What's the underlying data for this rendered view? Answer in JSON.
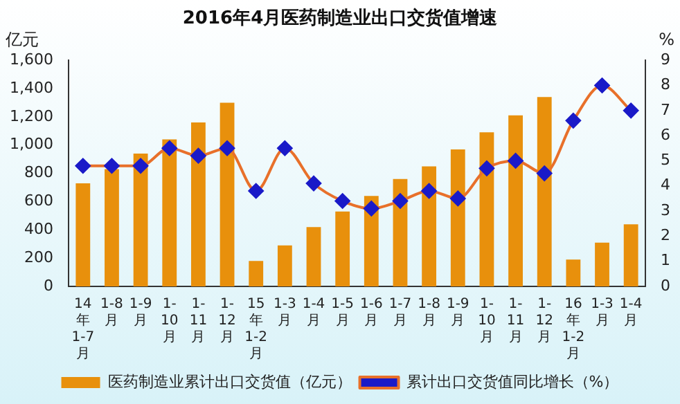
{
  "chart_data": {
    "type": "bar",
    "title": "2016年4月医药制造业出口交货值增速",
    "ylabel": "亿元",
    "y2label": "%",
    "categories": [
      "14年1-7月",
      "1-8月",
      "1-9月",
      "1-10月",
      "1-11月",
      "1-12月",
      "15年1-2月",
      "1-3月",
      "1-4月",
      "1-5月",
      "1-6月",
      "1-7月",
      "1-8月",
      "1-9月",
      "1-10月",
      "1-11月",
      "1-12月",
      "16年1-2月",
      "1-3月",
      "1-4月"
    ],
    "series": [
      {
        "name": "医药制造业累计出口交货值（亿元）",
        "color": "#e8900c",
        "values": [
          730,
          830,
          940,
          1040,
          1160,
          1300,
          180,
          290,
          420,
          530,
          640,
          760,
          850,
          970,
          1090,
          1210,
          1340,
          190,
          310,
          440
        ]
      },
      {
        "name": "累计出口交货值同比增长（%）",
        "type": "line",
        "axis": "y2",
        "color": "#e8702a",
        "marker": "diamond",
        "values": [
          4.8,
          4.8,
          4.8,
          5.5,
          5.2,
          5.5,
          3.8,
          5.5,
          4.1,
          3.4,
          3.1,
          3.4,
          3.8,
          3.5,
          4.7,
          5.0,
          4.5,
          6.6,
          8.0,
          7.0
        ]
      }
    ],
    "ylim": [
      0,
      1600
    ],
    "yticks": [
      0,
      {
        "value": 200,
        "label": "200"
      },
      {
        "value": 400,
        "label": "400"
      },
      {
        "value": 600,
        "label": "600"
      },
      {
        "value": 800,
        "label": "800"
      },
      {
        "value": 1000,
        "label": "1,000"
      },
      {
        "value": 1200,
        "label": "1,200"
      },
      {
        "value": 1400,
        "label": "1,400"
      },
      {
        "value": 1600,
        "label": "1,600"
      }
    ],
    "y2lim": [
      0,
      9
    ],
    "y2ticks": [
      0,
      1,
      2,
      3,
      4,
      5,
      6,
      7,
      8,
      9
    ],
    "grid": false,
    "legend": "bottom"
  }
}
